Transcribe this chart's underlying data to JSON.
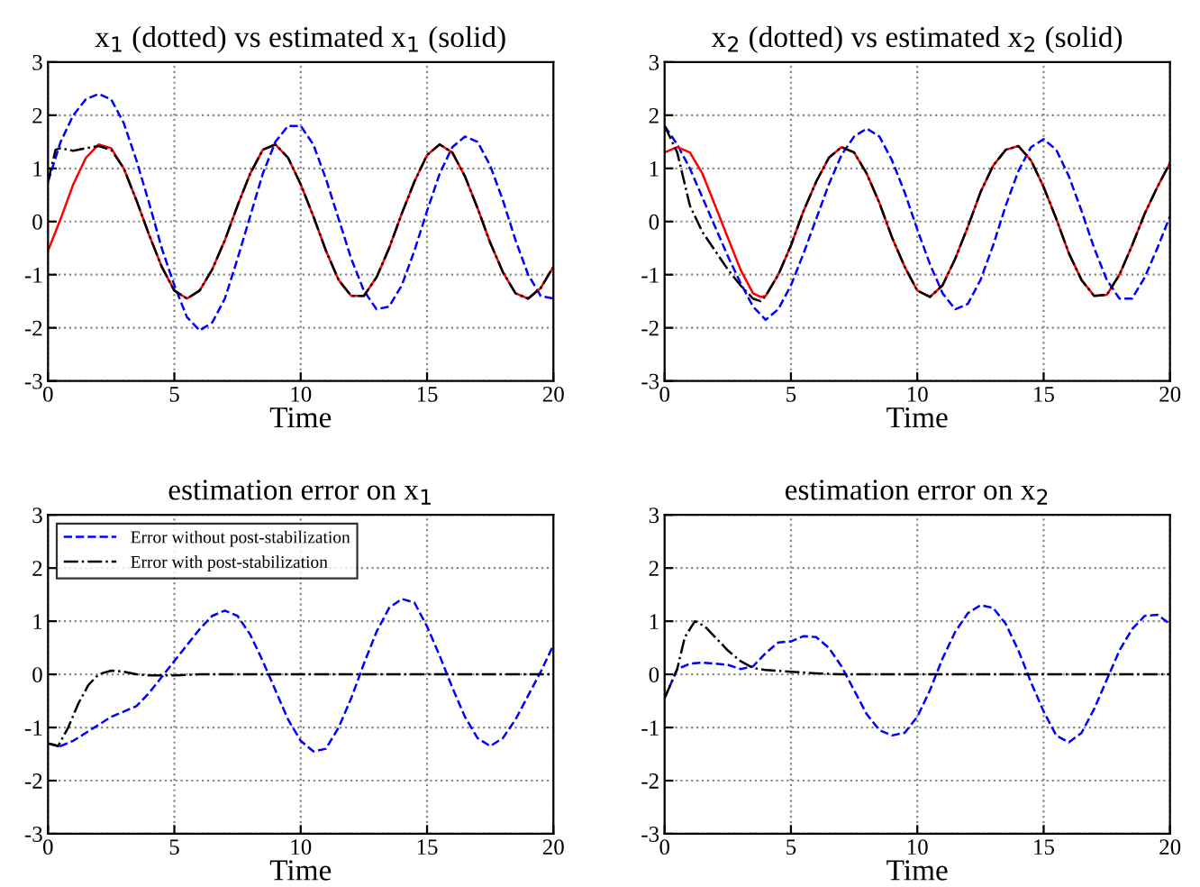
{
  "chart_data": [
    {
      "type": "line",
      "title": "x$_{1}$ (dotted) vs estimated x$_{1}$ (solid)",
      "xlabel": "Time",
      "xlim": [
        0,
        20
      ],
      "ylim": [
        -3,
        3
      ],
      "xticks": [
        0,
        5,
        10,
        15,
        20
      ],
      "yticks": [
        -3,
        -2,
        -1,
        0,
        1,
        2,
        3
      ],
      "grid": true,
      "legend": false,
      "series": [
        {
          "color": "#0000ff",
          "line_style": "dashed",
          "x": [
            0,
            0.5,
            1,
            1.5,
            2,
            2.5,
            3,
            3.5,
            4,
            4.5,
            5,
            5.5,
            6,
            6.5,
            7,
            7.5,
            8,
            8.5,
            9,
            9.5,
            10,
            10.5,
            11,
            11.5,
            12,
            12.5,
            13,
            13.5,
            14,
            14.5,
            15,
            15.5,
            16,
            16.5,
            17,
            17.5,
            18,
            18.5,
            19,
            19.5,
            20
          ],
          "values": [
            0.75,
            1.5,
            2.0,
            2.3,
            2.4,
            2.3,
            1.85,
            1.15,
            0.35,
            -0.5,
            -1.2,
            -1.8,
            -2.05,
            -1.9,
            -1.45,
            -0.7,
            0.1,
            0.9,
            1.5,
            1.8,
            1.8,
            1.45,
            0.8,
            0.05,
            -0.7,
            -1.3,
            -1.65,
            -1.6,
            -1.2,
            -0.55,
            0.2,
            0.9,
            1.4,
            1.6,
            1.5,
            1.05,
            0.4,
            -0.35,
            -1.0,
            -1.4,
            -1.45
          ]
        },
        {
          "color": "#ff0000",
          "line_style": "solid",
          "x": [
            0,
            0.5,
            1,
            1.5,
            2,
            2.5,
            3,
            3.5,
            4,
            4.5,
            5,
            5.5,
            6,
            6.5,
            7,
            7.5,
            8,
            8.5,
            9,
            9.5,
            10,
            10.5,
            11,
            11.5,
            12,
            12.5,
            13,
            13.5,
            14,
            14.5,
            15,
            15.5,
            16,
            16.5,
            17,
            17.5,
            18,
            18.5,
            19,
            19.5,
            20
          ],
          "values": [
            -0.55,
            0.05,
            0.7,
            1.2,
            1.45,
            1.38,
            1.0,
            0.4,
            -0.25,
            -0.85,
            -1.3,
            -1.45,
            -1.3,
            -0.9,
            -0.35,
            0.3,
            0.9,
            1.35,
            1.45,
            1.2,
            0.7,
            0.1,
            -0.55,
            -1.1,
            -1.4,
            -1.4,
            -1.05,
            -0.5,
            0.15,
            0.75,
            1.25,
            1.45,
            1.3,
            0.85,
            0.25,
            -0.4,
            -0.95,
            -1.35,
            -1.45,
            -1.25,
            -0.85
          ]
        },
        {
          "color": "#000000",
          "line_style": "dashdot",
          "x": [
            0,
            0.3,
            0.5,
            1,
            1.5,
            2,
            2.5,
            3,
            3.5,
            4,
            4.5,
            5,
            5.5,
            6,
            6.5,
            7,
            7.5,
            8,
            8.5,
            9,
            9.5,
            10,
            10.5,
            11,
            11.5,
            12,
            12.5,
            13,
            13.5,
            14,
            14.5,
            15,
            15.5,
            16,
            16.5,
            17,
            17.5,
            18,
            18.5,
            19,
            19.5,
            20
          ],
          "values": [
            0.75,
            1.35,
            1.38,
            1.33,
            1.38,
            1.42,
            1.35,
            1.0,
            0.4,
            -0.25,
            -0.85,
            -1.3,
            -1.45,
            -1.3,
            -0.9,
            -0.35,
            0.3,
            0.9,
            1.35,
            1.45,
            1.2,
            0.7,
            0.1,
            -0.55,
            -1.1,
            -1.4,
            -1.4,
            -1.05,
            -0.5,
            0.15,
            0.75,
            1.25,
            1.45,
            1.3,
            0.85,
            0.25,
            -0.4,
            -0.95,
            -1.35,
            -1.45,
            -1.25,
            -0.85
          ]
        }
      ]
    },
    {
      "type": "line",
      "title": "x$_{2}$ (dotted) vs estimated x$_{2}$ (solid)",
      "xlabel": "Time",
      "xlim": [
        0,
        20
      ],
      "ylim": [
        -3,
        3
      ],
      "xticks": [
        0,
        5,
        10,
        15,
        20
      ],
      "yticks": [
        -3,
        -2,
        -1,
        0,
        1,
        2,
        3
      ],
      "grid": true,
      "legend": false,
      "series": [
        {
          "color": "#0000ff",
          "line_style": "dashed",
          "x": [
            0,
            0.5,
            1,
            1.5,
            2,
            2.5,
            3,
            3.5,
            4,
            4.5,
            5,
            5.5,
            6,
            6.5,
            7,
            7.5,
            8,
            8.5,
            9,
            9.5,
            10,
            10.5,
            11,
            11.5,
            12,
            12.5,
            13,
            13.5,
            14,
            14.5,
            15,
            15.5,
            16,
            16.5,
            17,
            17.5,
            18,
            18.5,
            19,
            19.5,
            20
          ],
          "values": [
            1.8,
            1.45,
            1.0,
            0.45,
            -0.1,
            -0.65,
            -1.15,
            -1.6,
            -1.85,
            -1.65,
            -1.2,
            -0.6,
            0.05,
            0.7,
            1.25,
            1.6,
            1.75,
            1.6,
            1.15,
            0.55,
            -0.15,
            -0.8,
            -1.35,
            -1.65,
            -1.55,
            -1.1,
            -0.45,
            0.3,
            0.95,
            1.4,
            1.55,
            1.35,
            0.85,
            0.2,
            -0.5,
            -1.1,
            -1.45,
            -1.45,
            -1.05,
            -0.5,
            0.1
          ]
        },
        {
          "color": "#ff0000",
          "line_style": "solid",
          "x": [
            0,
            0.5,
            1,
            1.5,
            2,
            2.5,
            3,
            3.5,
            3.8,
            4,
            4.5,
            5,
            5.5,
            6,
            6.5,
            7,
            7.5,
            8,
            8.5,
            9,
            9.5,
            10,
            10.5,
            11,
            11.5,
            12,
            12.5,
            13,
            13.5,
            14,
            14.5,
            15,
            15.5,
            16,
            16.5,
            17,
            17.5,
            18,
            18.5,
            19,
            19.5,
            20
          ],
          "values": [
            1.3,
            1.4,
            1.3,
            0.9,
            0.3,
            -0.3,
            -0.9,
            -1.35,
            -1.42,
            -1.4,
            -1.0,
            -0.45,
            0.2,
            0.75,
            1.2,
            1.4,
            1.3,
            0.9,
            0.35,
            -0.3,
            -0.85,
            -1.3,
            -1.42,
            -1.2,
            -0.7,
            -0.1,
            0.55,
            1.05,
            1.35,
            1.42,
            1.15,
            0.65,
            0.05,
            -0.6,
            -1.1,
            -1.4,
            -1.38,
            -1.0,
            -0.45,
            0.15,
            0.65,
            1.1
          ]
        },
        {
          "color": "#000000",
          "line_style": "dashdot",
          "x": [
            0,
            0.5,
            1,
            1.5,
            2,
            2.5,
            3,
            3.5,
            3.8,
            4,
            4.5,
            5,
            5.5,
            6,
            6.5,
            7,
            7.5,
            8,
            8.5,
            9,
            9.5,
            10,
            10.5,
            11,
            11.5,
            12,
            12.5,
            13,
            13.5,
            14,
            14.5,
            15,
            15.5,
            16,
            16.5,
            17,
            17.5,
            18,
            18.5,
            19,
            19.5,
            20
          ],
          "values": [
            1.8,
            1.3,
            0.3,
            -0.2,
            -0.55,
            -0.9,
            -1.2,
            -1.45,
            -1.5,
            -1.4,
            -1.0,
            -0.45,
            0.2,
            0.75,
            1.2,
            1.4,
            1.3,
            0.9,
            0.35,
            -0.3,
            -0.85,
            -1.3,
            -1.42,
            -1.2,
            -0.7,
            -0.1,
            0.55,
            1.05,
            1.35,
            1.42,
            1.15,
            0.65,
            0.05,
            -0.6,
            -1.1,
            -1.4,
            -1.38,
            -1.0,
            -0.45,
            0.15,
            0.65,
            1.1
          ]
        }
      ]
    },
    {
      "type": "line",
      "title": "estimation error on x$_{1}$",
      "xlabel": "Time",
      "xlim": [
        0,
        20
      ],
      "ylim": [
        -3,
        3
      ],
      "xticks": [
        0,
        5,
        10,
        15,
        20
      ],
      "yticks": [
        -3,
        -2,
        -1,
        0,
        1,
        2,
        3
      ],
      "grid": true,
      "legend": "top left",
      "series": [
        {
          "name": "Error without post-stabilization",
          "color": "#0000ff",
          "line_style": "dashed",
          "x": [
            0,
            0.5,
            1,
            1.5,
            2,
            2.5,
            3,
            3.5,
            4,
            4.5,
            5,
            5.5,
            6,
            6.5,
            7,
            7.5,
            8,
            8.5,
            9,
            9.5,
            10,
            10.5,
            11,
            11.5,
            12,
            12.5,
            13,
            13.5,
            14,
            14.5,
            15,
            15.5,
            16,
            16.5,
            17,
            17.5,
            18,
            18.5,
            19,
            19.5,
            20
          ],
          "values": [
            -1.3,
            -1.35,
            -1.25,
            -1.1,
            -0.95,
            -0.8,
            -0.7,
            -0.6,
            -0.35,
            -0.05,
            0.25,
            0.55,
            0.85,
            1.1,
            1.2,
            1.1,
            0.75,
            0.25,
            -0.3,
            -0.85,
            -1.25,
            -1.45,
            -1.4,
            -1.0,
            -0.45,
            0.2,
            0.8,
            1.25,
            1.42,
            1.35,
            0.9,
            0.35,
            -0.25,
            -0.8,
            -1.2,
            -1.35,
            -1.2,
            -0.85,
            -0.4,
            0.05,
            0.55
          ]
        },
        {
          "name": "Error with post-stabilization",
          "color": "#000000",
          "line_style": "dashdot",
          "x": [
            0,
            0.4,
            0.8,
            1.2,
            1.6,
            2,
            2.5,
            3,
            3.5,
            4,
            5,
            6,
            7,
            8,
            9,
            10,
            11,
            12,
            13,
            14,
            15,
            16,
            17,
            18,
            19,
            20
          ],
          "values": [
            -1.3,
            -1.35,
            -1.0,
            -0.55,
            -0.2,
            0.0,
            0.07,
            0.05,
            0.0,
            -0.02,
            -0.02,
            0,
            0,
            0,
            0,
            0,
            0,
            0,
            0,
            0,
            0,
            0,
            0,
            0,
            0,
            0
          ]
        }
      ]
    },
    {
      "type": "line",
      "title": "estimation error on x$_{2}$",
      "xlabel": "Time",
      "xlim": [
        0,
        20
      ],
      "ylim": [
        -3,
        3
      ],
      "xticks": [
        0,
        5,
        10,
        15,
        20
      ],
      "yticks": [
        -3,
        -2,
        -1,
        0,
        1,
        2,
        3
      ],
      "grid": true,
      "legend": false,
      "series": [
        {
          "color": "#0000ff",
          "line_style": "dashed",
          "x": [
            0,
            0.5,
            1,
            1.5,
            2,
            2.5,
            3,
            3.5,
            4,
            4.5,
            5,
            5.5,
            6,
            6.5,
            7,
            7.5,
            8,
            8.5,
            9,
            9.5,
            10,
            10.5,
            11,
            11.5,
            12,
            12.5,
            13,
            13.5,
            14,
            14.5,
            15,
            15.5,
            16,
            16.5,
            17,
            17.5,
            18,
            18.5,
            19,
            19.5,
            20
          ],
          "values": [
            -0.45,
            0.1,
            0.2,
            0.22,
            0.2,
            0.18,
            0.1,
            0.15,
            0.4,
            0.6,
            0.62,
            0.72,
            0.7,
            0.5,
            0.15,
            -0.3,
            -0.75,
            -1.05,
            -1.15,
            -1.1,
            -0.8,
            -0.3,
            0.3,
            0.8,
            1.15,
            1.3,
            1.25,
            0.95,
            0.45,
            -0.15,
            -0.7,
            -1.15,
            -1.28,
            -1.1,
            -0.65,
            -0.1,
            0.45,
            0.85,
            1.1,
            1.12,
            0.95
          ]
        },
        {
          "color": "#000000",
          "line_style": "dashdot",
          "x": [
            0,
            0.5,
            0.8,
            1.2,
            1.6,
            2,
            2.5,
            3,
            3.5,
            4,
            5,
            6,
            7,
            8,
            9,
            10,
            11,
            12,
            13,
            14,
            15,
            16,
            17,
            18,
            19,
            20
          ],
          "values": [
            -0.45,
            0.1,
            0.7,
            1.0,
            0.9,
            0.7,
            0.45,
            0.25,
            0.12,
            0.08,
            0.05,
            0.02,
            0,
            0,
            0,
            0,
            0,
            0,
            0,
            0,
            0,
            0,
            0,
            0,
            0,
            0
          ]
        }
      ]
    }
  ]
}
